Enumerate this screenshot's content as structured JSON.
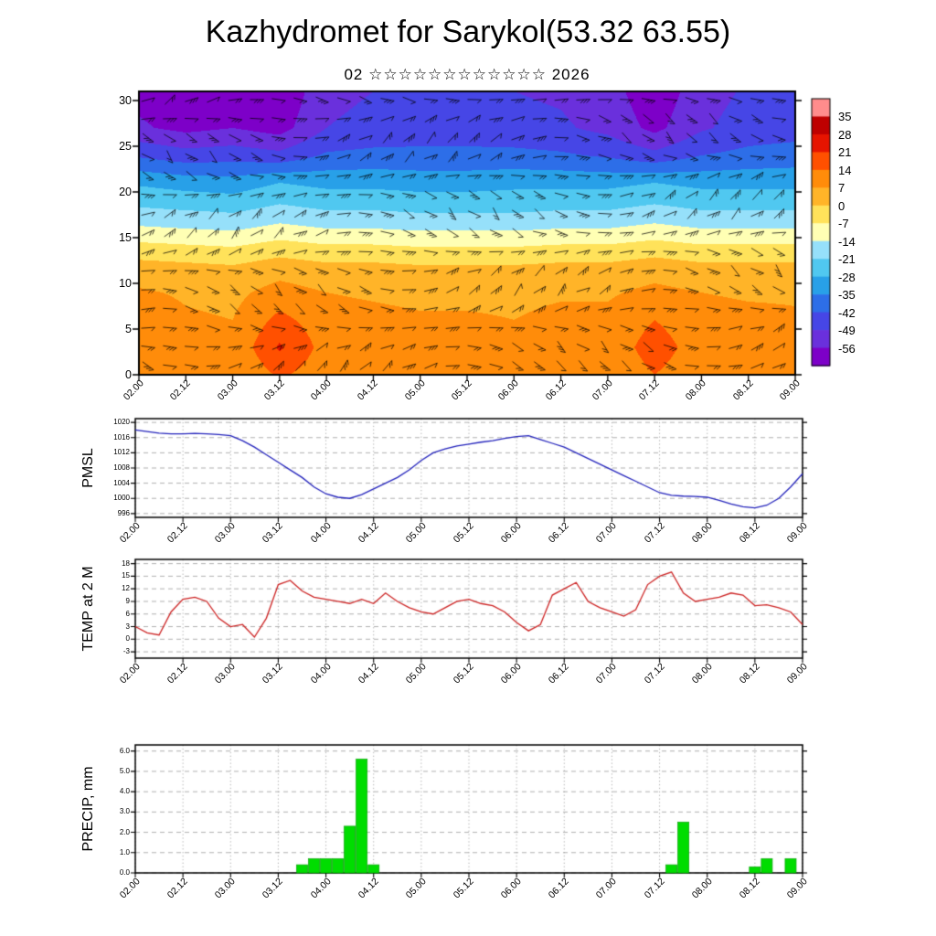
{
  "page": {
    "title": "Kazhydromet for Sarykol(53.32 63.55)",
    "subtitle": "02 ☆☆☆☆☆☆☆☆☆☆☆☆ 2026"
  },
  "time_axis": {
    "labels": [
      "02.00",
      "02.12",
      "03.00",
      "03.12",
      "04.00",
      "04.12",
      "05.00",
      "05.12",
      "06.00",
      "06.12",
      "07.00",
      "07.12",
      "08.00",
      "08.12",
      "09.00"
    ],
    "hours": [
      0,
      12,
      24,
      36,
      48,
      60,
      72,
      84,
      96,
      108,
      120,
      132,
      144,
      156,
      168
    ]
  },
  "chart_data": [
    {
      "id": "time_height_temperature_wind",
      "type": "heatmap",
      "overlay": "wind-barbs",
      "yticks": [
        0,
        5,
        10,
        15,
        20,
        25,
        30
      ],
      "ylim": [
        0,
        31
      ],
      "levels": [
        0,
        3,
        6,
        9,
        12,
        14,
        16,
        18,
        21,
        24,
        27,
        31
      ],
      "temperature_grid": [
        [
          10,
          8,
          7,
          15,
          10,
          10,
          8,
          9,
          8,
          10,
          9,
          14,
          10,
          9,
          8
        ],
        [
          14,
          9,
          8,
          22,
          11,
          10,
          9,
          9,
          8,
          10,
          10,
          17,
          11,
          10,
          9
        ],
        [
          12,
          8,
          7,
          16,
          10,
          9,
          8,
          8,
          7,
          9,
          9,
          14,
          10,
          9,
          8
        ],
        [
          8,
          6,
          5,
          10,
          7,
          6,
          5,
          5,
          5,
          6,
          6,
          9,
          7,
          6,
          6
        ],
        [
          2,
          1,
          0,
          3,
          1,
          1,
          0,
          0,
          0,
          1,
          1,
          3,
          1,
          1,
          1
        ],
        [
          -5,
          -6,
          -7,
          -4,
          -6,
          -6,
          -7,
          -7,
          -7,
          -6,
          -6,
          -4,
          -6,
          -6,
          -6
        ],
        [
          -13,
          -14,
          -15,
          -12,
          -14,
          -14,
          -15,
          -15,
          -15,
          -14,
          -14,
          -12,
          -14,
          -14,
          -14
        ],
        [
          -20,
          -21,
          -22,
          -19,
          -21,
          -21,
          -22,
          -22,
          -22,
          -21,
          -21,
          -19,
          -21,
          -21,
          -21
        ],
        [
          -29,
          -31,
          -32,
          -28,
          -30,
          -30,
          -31,
          -31,
          -30,
          -30,
          -30,
          -28,
          -30,
          -30,
          -30
        ],
        [
          -43,
          -46,
          -45,
          -47,
          -41,
          -40,
          -40,
          -40,
          -40,
          -41,
          -43,
          -47,
          -42,
          -40,
          -39
        ],
        [
          -55,
          -58,
          -56,
          -59,
          -49,
          -47,
          -46,
          -46,
          -47,
          -48,
          -51,
          -58,
          -50,
          -46,
          -45
        ],
        [
          -58,
          -61,
          -59,
          -62,
          -51,
          -49,
          -48,
          -48,
          -49,
          -50,
          -53,
          -61,
          -52,
          -48,
          -47
        ]
      ],
      "colorbar": {
        "tick_labels": [
          "35",
          "28",
          "21",
          "14",
          "7",
          "0",
          "-7",
          "-14",
          "-21",
          "-28",
          "-35",
          "-42",
          "-49",
          "-56"
        ],
        "band_colors_cold_to_hot": [
          "#7d00c8",
          "#6a30dc",
          "#4646e6",
          "#2d6ee8",
          "#28a0e8",
          "#50c8f0",
          "#96e0fa",
          "#ffffb4",
          "#ffe25a",
          "#ffb428",
          "#ff8c0a",
          "#ff5000",
          "#e61400",
          "#be0000",
          "#ff8c8c"
        ]
      }
    },
    {
      "id": "pmsl",
      "type": "line",
      "ylabel": "PMSL",
      "yticks": [
        1020,
        1016,
        1012,
        1008,
        1004,
        1000,
        996
      ],
      "ylim": [
        995,
        1021
      ],
      "line_color": "#2222bb",
      "x_start": 0,
      "x_step": 3,
      "values": [
        1018,
        1017.6,
        1017.2,
        1017,
        1017,
        1017.1,
        1017,
        1016.8,
        1016.5,
        1015.2,
        1013.5,
        1011.5,
        1009.5,
        1007.5,
        1005.5,
        1003,
        1001.2,
        1000.3,
        1000,
        1001,
        1002.5,
        1004,
        1005.5,
        1007.5,
        1010,
        1012,
        1013,
        1013.8,
        1014.3,
        1014.8,
        1015.2,
        1015.8,
        1016.3,
        1016.5,
        1015.5,
        1014.5,
        1013.5,
        1012,
        1010.5,
        1009,
        1007.5,
        1006,
        1004.5,
        1003,
        1001.5,
        1000.8,
        1000.6,
        1000.5,
        1000.3,
        999.5,
        998.5,
        997.8,
        997.5,
        998.2,
        1000,
        1003,
        1006.5
      ]
    },
    {
      "id": "temp_2m",
      "type": "line",
      "ylabel": "TEMP at 2 M",
      "yticks": [
        18,
        15,
        12,
        9,
        6,
        3,
        0,
        -3
      ],
      "ylim": [
        -4.5,
        19
      ],
      "line_color": "#cc2222",
      "x_start": 0,
      "x_step": 3,
      "values": [
        3,
        1.5,
        1,
        6.5,
        9.5,
        10,
        9,
        5,
        3,
        3.5,
        0.5,
        5,
        13,
        14,
        11.5,
        10,
        9.5,
        9,
        8.5,
        9.5,
        8.5,
        11,
        9,
        7.5,
        6.5,
        6,
        7.5,
        9,
        9.5,
        8.5,
        8,
        6.5,
        4,
        2,
        3.5,
        10.5,
        12,
        13.5,
        9,
        7.5,
        6.5,
        5.5,
        7,
        13,
        15,
        16,
        11,
        9,
        9.5,
        10,
        11,
        10.5,
        8,
        8.2,
        7.5,
        6.5,
        3.5
      ]
    },
    {
      "id": "precip",
      "type": "bar",
      "ylabel": "PRECIP, mm",
      "yticks": [
        "6.0",
        "5.0",
        "4.0",
        "3.0",
        "2.0",
        "1.0",
        "0.0"
      ],
      "ylim": [
        0,
        6.3
      ],
      "bar_color": "#00dd00",
      "bin_hours": 3,
      "bars": [
        {
          "hour": 42,
          "value": 0.4
        },
        {
          "hour": 45,
          "value": 0.7
        },
        {
          "hour": 48,
          "value": 0.7
        },
        {
          "hour": 51,
          "value": 0.7
        },
        {
          "hour": 54,
          "value": 2.3
        },
        {
          "hour": 57,
          "value": 5.6
        },
        {
          "hour": 60,
          "value": 0.4
        },
        {
          "hour": 135,
          "value": 0.4
        },
        {
          "hour": 138,
          "value": 2.5
        },
        {
          "hour": 156,
          "value": 0.3
        },
        {
          "hour": 159,
          "value": 0.7
        },
        {
          "hour": 165,
          "value": 0.7
        }
      ]
    }
  ]
}
